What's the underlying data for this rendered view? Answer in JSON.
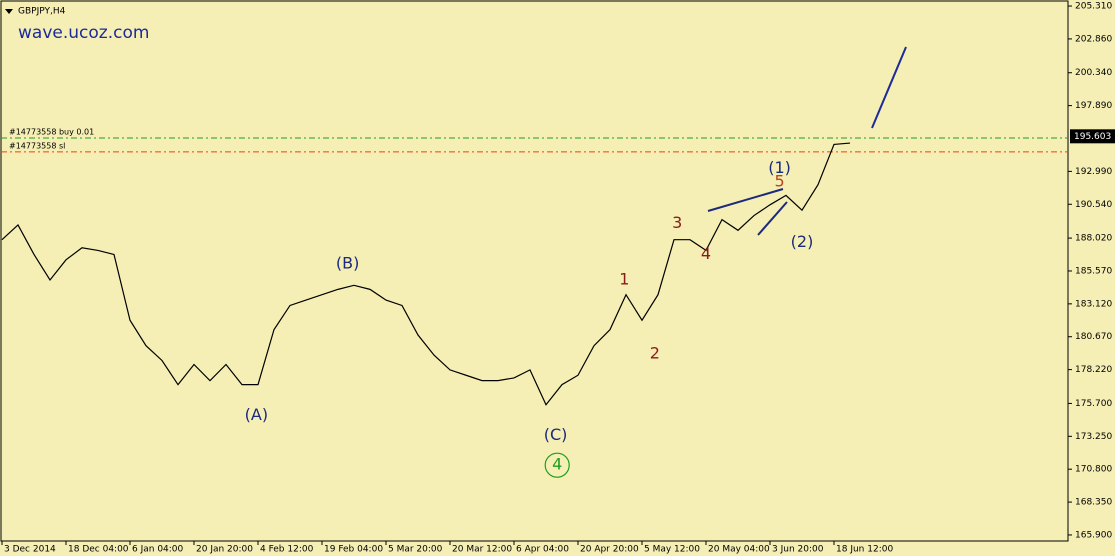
{
  "chart_data": {
    "type": "line",
    "title": "GBPJPY,H4",
    "watermark": "wave.ucoz.com",
    "background": "#f5efb5",
    "grid": false,
    "categories": [
      "3 Dec 2014",
      null,
      null,
      null,
      "18 Dec 04:00",
      null,
      null,
      null,
      "6 Jan 04:00",
      null,
      null,
      null,
      "20 Jan 20:00",
      null,
      null,
      null,
      "4 Feb 12:00",
      null,
      null,
      null,
      "19 Feb 04:00",
      null,
      null,
      null,
      "5 Mar 20:00",
      null,
      null,
      null,
      "20 Mar 12:00",
      null,
      null,
      null,
      "6 Apr 04:00",
      null,
      null,
      null,
      "20 Apr 20:00",
      null,
      null,
      null,
      "5 May 12:00",
      null,
      null,
      null,
      "20 May 04:00",
      null,
      null,
      null,
      "3 Jun 20:00",
      null,
      null,
      null,
      "18 Jun 12:00",
      null
    ],
    "series": [
      {
        "name": "GBPJPY",
        "color": "#000000",
        "values": [
          187.9,
          189.0,
          186.8,
          184.9,
          186.4,
          187.3,
          187.1,
          186.8,
          181.9,
          180.0,
          178.9,
          177.1,
          178.6,
          177.4,
          178.6,
          177.1,
          177.1,
          181.2,
          183.0,
          183.4,
          183.8,
          184.2,
          184.5,
          184.2,
          183.4,
          183.0,
          180.8,
          179.3,
          178.2,
          177.8,
          177.4,
          177.4,
          177.6,
          178.2,
          175.6,
          177.1,
          177.8,
          180.0,
          181.2,
          183.8,
          181.9,
          183.8,
          187.9,
          187.9,
          187.1,
          189.4,
          188.6,
          189.7,
          190.5,
          191.2,
          190.1,
          192.0,
          195.0,
          195.1
        ]
      }
    ],
    "ylim": [
      165.45,
      205.76
    ],
    "yticks": [
      {
        "value": 165.9,
        "label": "165.900"
      },
      {
        "value": 168.35,
        "label": "168.350"
      },
      {
        "value": 170.8,
        "label": "170.800"
      },
      {
        "value": 173.25,
        "label": "173.250"
      },
      {
        "value": 175.7,
        "label": "175.700"
      },
      {
        "value": 178.22,
        "label": "178.220"
      },
      {
        "value": 180.67,
        "label": "180.670"
      },
      {
        "value": 183.12,
        "label": "183.120"
      },
      {
        "value": 185.57,
        "label": "185.570"
      },
      {
        "value": 188.02,
        "label": "188.020"
      },
      {
        "value": 190.54,
        "label": "190.540"
      },
      {
        "value": 192.99,
        "label": "192.990"
      },
      {
        "value": 197.89,
        "label": "197.890"
      },
      {
        "value": 200.34,
        "label": "200.340"
      },
      {
        "value": 202.86,
        "label": "202.860"
      },
      {
        "value": 205.31,
        "label": "205.310"
      }
    ],
    "current_price": {
      "value": 195.603,
      "label": "195.603"
    },
    "orders": [
      {
        "text": "#14773558 buy 0.01",
        "price": 195.48,
        "color": "#1e9e1e"
      },
      {
        "text": "#14773558 sl",
        "price": 194.44,
        "color": "#ff3c00"
      }
    ],
    "annotations": [
      {
        "text": "(A)",
        "x": 15.9,
        "y": 174.8,
        "color": "#1c2a7a"
      },
      {
        "text": "(B)",
        "x": 21.6,
        "y": 186.1,
        "color": "#1c2a7a"
      },
      {
        "text": "(C)",
        "x": 34.6,
        "y": 173.3,
        "color": "#1c2a7a"
      },
      {
        "text": "4",
        "x": 34.7,
        "y": 171.1,
        "color": "#1e9e1e",
        "circled": true
      },
      {
        "text": "1",
        "x": 38.9,
        "y": 184.9,
        "color": "#8b1a1a"
      },
      {
        "text": "2",
        "x": 40.8,
        "y": 179.4,
        "color": "#8b1a1a"
      },
      {
        "text": "3",
        "x": 42.2,
        "y": 189.1,
        "color": "#8b1a1a"
      },
      {
        "text": "4",
        "x": 44.0,
        "y": 186.8,
        "color": "#8b1a1a"
      },
      {
        "text": "5",
        "x": 48.6,
        "y": 192.2,
        "color": "#b5461a"
      },
      {
        "text": "(1)",
        "x": 48.6,
        "y": 193.2,
        "color": "#1c2a7a"
      },
      {
        "text": "(2)",
        "x": 50.0,
        "y": 187.7,
        "color": "#1c2a7a"
      }
    ]
  }
}
